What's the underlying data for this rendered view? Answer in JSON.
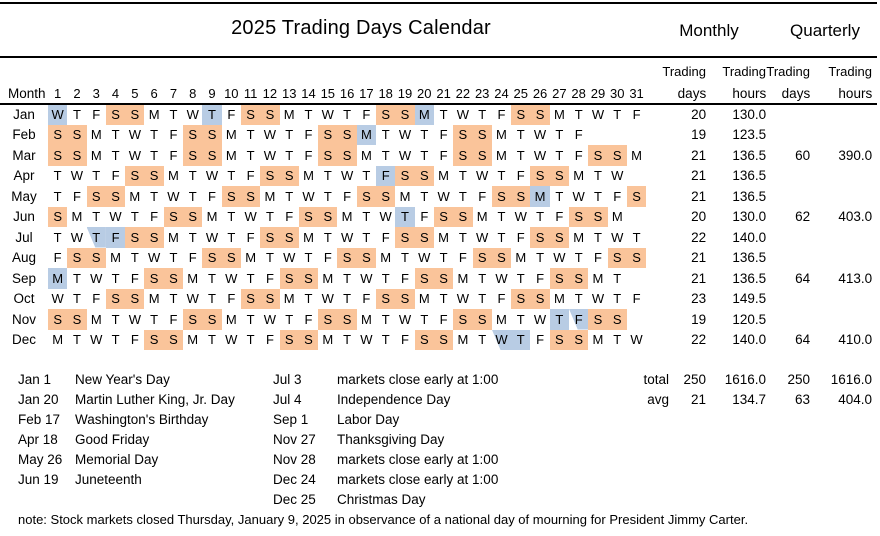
{
  "title": "2025 Trading Days Calendar",
  "period_headers": {
    "monthly": "Monthly",
    "quarterly": "Quarterly"
  },
  "column_headers": {
    "month": "Month",
    "day_numbers": [
      1,
      2,
      3,
      4,
      5,
      6,
      7,
      8,
      9,
      10,
      11,
      12,
      13,
      14,
      15,
      16,
      17,
      18,
      19,
      20,
      21,
      22,
      23,
      24,
      25,
      26,
      27,
      28,
      29,
      30,
      31
    ],
    "value_columns": [
      {
        "top": "Trading",
        "bottom": "days"
      },
      {
        "top": "Trading",
        "bottom": "hours"
      },
      {
        "top": "Trading",
        "bottom": "days"
      },
      {
        "top": "Trading",
        "bottom": "hours"
      }
    ]
  },
  "colors": {
    "weekend": "#FAC49A",
    "holiday": "#B8CCE4"
  },
  "months": [
    {
      "name": "Jan",
      "letters": [
        "W",
        "T",
        "F",
        "S",
        "S",
        "M",
        "T",
        "W",
        "T",
        "F",
        "S",
        "S",
        "M",
        "T",
        "W",
        "T",
        "F",
        "S",
        "S",
        "M",
        "T",
        "W",
        "T",
        "F",
        "S",
        "S",
        "M",
        "T",
        "W",
        "T",
        "F"
      ],
      "weekend": [
        4,
        5,
        11,
        12,
        18,
        19,
        25,
        26
      ],
      "holiday": [
        1,
        9,
        20
      ],
      "early": [],
      "trading_days": "20",
      "trading_hours": "130.0",
      "q_days": "",
      "q_hours": ""
    },
    {
      "name": "Feb",
      "letters": [
        "S",
        "S",
        "M",
        "T",
        "W",
        "T",
        "F",
        "S",
        "S",
        "M",
        "T",
        "W",
        "T",
        "F",
        "S",
        "S",
        "M",
        "T",
        "W",
        "T",
        "F",
        "S",
        "S",
        "M",
        "T",
        "W",
        "T",
        "F"
      ],
      "weekend": [
        1,
        2,
        8,
        9,
        15,
        16,
        22,
        23
      ],
      "holiday": [
        17
      ],
      "early": [],
      "trading_days": "19",
      "trading_hours": "123.5",
      "q_days": "",
      "q_hours": ""
    },
    {
      "name": "Mar",
      "letters": [
        "S",
        "S",
        "M",
        "T",
        "W",
        "T",
        "F",
        "S",
        "S",
        "M",
        "T",
        "W",
        "T",
        "F",
        "S",
        "S",
        "M",
        "T",
        "W",
        "T",
        "F",
        "S",
        "S",
        "M",
        "T",
        "W",
        "T",
        "F",
        "S",
        "S",
        "M"
      ],
      "weekend": [
        1,
        2,
        8,
        9,
        15,
        16,
        22,
        23,
        29,
        30
      ],
      "holiday": [],
      "early": [],
      "trading_days": "21",
      "trading_hours": "136.5",
      "q_days": "60",
      "q_hours": "390.0"
    },
    {
      "name": "Apr",
      "letters": [
        "T",
        "W",
        "T",
        "F",
        "S",
        "S",
        "M",
        "T",
        "W",
        "T",
        "F",
        "S",
        "S",
        "M",
        "T",
        "W",
        "T",
        "F",
        "S",
        "S",
        "M",
        "T",
        "W",
        "T",
        "F",
        "S",
        "S",
        "M",
        "T",
        "W"
      ],
      "weekend": [
        5,
        6,
        12,
        13,
        19,
        20,
        26,
        27
      ],
      "holiday": [
        18
      ],
      "early": [],
      "trading_days": "21",
      "trading_hours": "136.5",
      "q_days": "",
      "q_hours": ""
    },
    {
      "name": "May",
      "letters": [
        "T",
        "F",
        "S",
        "S",
        "M",
        "T",
        "W",
        "T",
        "F",
        "S",
        "S",
        "M",
        "T",
        "W",
        "T",
        "F",
        "S",
        "S",
        "M",
        "T",
        "W",
        "T",
        "F",
        "S",
        "S",
        "M",
        "T",
        "W",
        "T",
        "F",
        "S"
      ],
      "weekend": [
        3,
        4,
        10,
        11,
        17,
        18,
        24,
        25,
        31
      ],
      "holiday": [
        26
      ],
      "early": [],
      "trading_days": "21",
      "trading_hours": "136.5",
      "q_days": "",
      "q_hours": ""
    },
    {
      "name": "Jun",
      "letters": [
        "S",
        "M",
        "T",
        "W",
        "T",
        "F",
        "S",
        "S",
        "M",
        "T",
        "W",
        "T",
        "F",
        "S",
        "S",
        "M",
        "T",
        "W",
        "T",
        "F",
        "S",
        "S",
        "M",
        "T",
        "W",
        "T",
        "F",
        "S",
        "S",
        "M"
      ],
      "weekend": [
        1,
        7,
        8,
        14,
        15,
        21,
        22,
        28,
        29
      ],
      "holiday": [
        19
      ],
      "early": [],
      "trading_days": "20",
      "trading_hours": "130.0",
      "q_days": "62",
      "q_hours": "403.0"
    },
    {
      "name": "Jul",
      "letters": [
        "T",
        "W",
        "T",
        "F",
        "S",
        "S",
        "M",
        "T",
        "W",
        "T",
        "F",
        "S",
        "S",
        "M",
        "T",
        "W",
        "T",
        "F",
        "S",
        "S",
        "M",
        "T",
        "W",
        "T",
        "F",
        "S",
        "S",
        "M",
        "T",
        "W",
        "T"
      ],
      "weekend": [
        5,
        6,
        12,
        13,
        19,
        20,
        26,
        27
      ],
      "holiday": [
        4
      ],
      "early": [
        3
      ],
      "trading_days": "22",
      "trading_hours": "140.0",
      "q_days": "",
      "q_hours": ""
    },
    {
      "name": "Aug",
      "letters": [
        "F",
        "S",
        "S",
        "M",
        "T",
        "W",
        "T",
        "F",
        "S",
        "S",
        "M",
        "T",
        "W",
        "T",
        "F",
        "S",
        "S",
        "M",
        "T",
        "W",
        "T",
        "F",
        "S",
        "S",
        "M",
        "T",
        "W",
        "T",
        "F",
        "S",
        "S"
      ],
      "weekend": [
        2,
        3,
        9,
        10,
        16,
        17,
        23,
        24,
        30,
        31
      ],
      "holiday": [],
      "early": [],
      "trading_days": "21",
      "trading_hours": "136.5",
      "q_days": "",
      "q_hours": ""
    },
    {
      "name": "Sep",
      "letters": [
        "M",
        "T",
        "W",
        "T",
        "F",
        "S",
        "S",
        "M",
        "T",
        "W",
        "T",
        "F",
        "S",
        "S",
        "M",
        "T",
        "W",
        "T",
        "F",
        "S",
        "S",
        "M",
        "T",
        "W",
        "T",
        "F",
        "S",
        "S",
        "M",
        "T"
      ],
      "weekend": [
        6,
        7,
        13,
        14,
        20,
        21,
        27,
        28
      ],
      "holiday": [
        1
      ],
      "early": [],
      "trading_days": "21",
      "trading_hours": "136.5",
      "q_days": "64",
      "q_hours": "413.0"
    },
    {
      "name": "Oct",
      "letters": [
        "W",
        "T",
        "F",
        "S",
        "S",
        "M",
        "T",
        "W",
        "T",
        "F",
        "S",
        "S",
        "M",
        "T",
        "W",
        "T",
        "F",
        "S",
        "S",
        "M",
        "T",
        "W",
        "T",
        "F",
        "S",
        "S",
        "M",
        "T",
        "W",
        "T",
        "F"
      ],
      "weekend": [
        4,
        5,
        11,
        12,
        18,
        19,
        25,
        26
      ],
      "holiday": [],
      "early": [],
      "trading_days": "23",
      "trading_hours": "149.5",
      "q_days": "",
      "q_hours": ""
    },
    {
      "name": "Nov",
      "letters": [
        "S",
        "S",
        "M",
        "T",
        "W",
        "T",
        "F",
        "S",
        "S",
        "M",
        "T",
        "W",
        "T",
        "F",
        "S",
        "S",
        "M",
        "T",
        "W",
        "T",
        "F",
        "S",
        "S",
        "M",
        "T",
        "W",
        "T",
        "F",
        "S",
        "S"
      ],
      "weekend": [
        1,
        2,
        8,
        9,
        15,
        16,
        22,
        23,
        29,
        30
      ],
      "holiday": [
        27
      ],
      "early": [
        28
      ],
      "trading_days": "19",
      "trading_hours": "120.5",
      "q_days": "",
      "q_hours": ""
    },
    {
      "name": "Dec",
      "letters": [
        "M",
        "T",
        "W",
        "T",
        "F",
        "S",
        "S",
        "M",
        "T",
        "W",
        "T",
        "F",
        "S",
        "S",
        "M",
        "T",
        "W",
        "T",
        "F",
        "S",
        "S",
        "M",
        "T",
        "W",
        "T",
        "F",
        "S",
        "S",
        "M",
        "T",
        "W"
      ],
      "weekend": [
        6,
        7,
        13,
        14,
        20,
        21,
        27,
        28
      ],
      "holiday": [
        25
      ],
      "early": [
        24
      ],
      "trading_days": "22",
      "trading_hours": "140.0",
      "q_days": "64",
      "q_hours": "410.0"
    }
  ],
  "summary": {
    "rows": [
      {
        "label": "total",
        "values": [
          "250",
          "1616.0",
          "250",
          "1616.0"
        ]
      },
      {
        "label": "avg",
        "values": [
          "21",
          "134.7",
          "63",
          "404.0"
        ]
      }
    ]
  },
  "holidays_left": [
    {
      "date": "Jan 1",
      "name": "New Year's Day"
    },
    {
      "date": "Jan 20",
      "name": "Martin Luther King, Jr. Day"
    },
    {
      "date": "Feb 17",
      "name": "Washington's Birthday"
    },
    {
      "date": "Apr 18",
      "name": "Good Friday"
    },
    {
      "date": "May 26",
      "name": "Memorial Day"
    },
    {
      "date": "Jun 19",
      "name": "Juneteenth"
    }
  ],
  "holidays_right": [
    {
      "date": "Jul 3",
      "name": "markets close early at 1:00"
    },
    {
      "date": "Jul 4",
      "name": "Independence Day"
    },
    {
      "date": "Sep 1",
      "name": "Labor Day"
    },
    {
      "date": "Nov 27",
      "name": "Thanksgiving Day"
    },
    {
      "date": "Nov 28",
      "name": "markets close early at 1:00"
    },
    {
      "date": "Dec 24",
      "name": "markets close early at 1:00"
    },
    {
      "date": "Dec 25",
      "name": "Christmas Day"
    }
  ],
  "note": "note: Stock markets closed Thursday, January 9, 2025 in observance of a national day of mourning for President Jimmy Carter."
}
